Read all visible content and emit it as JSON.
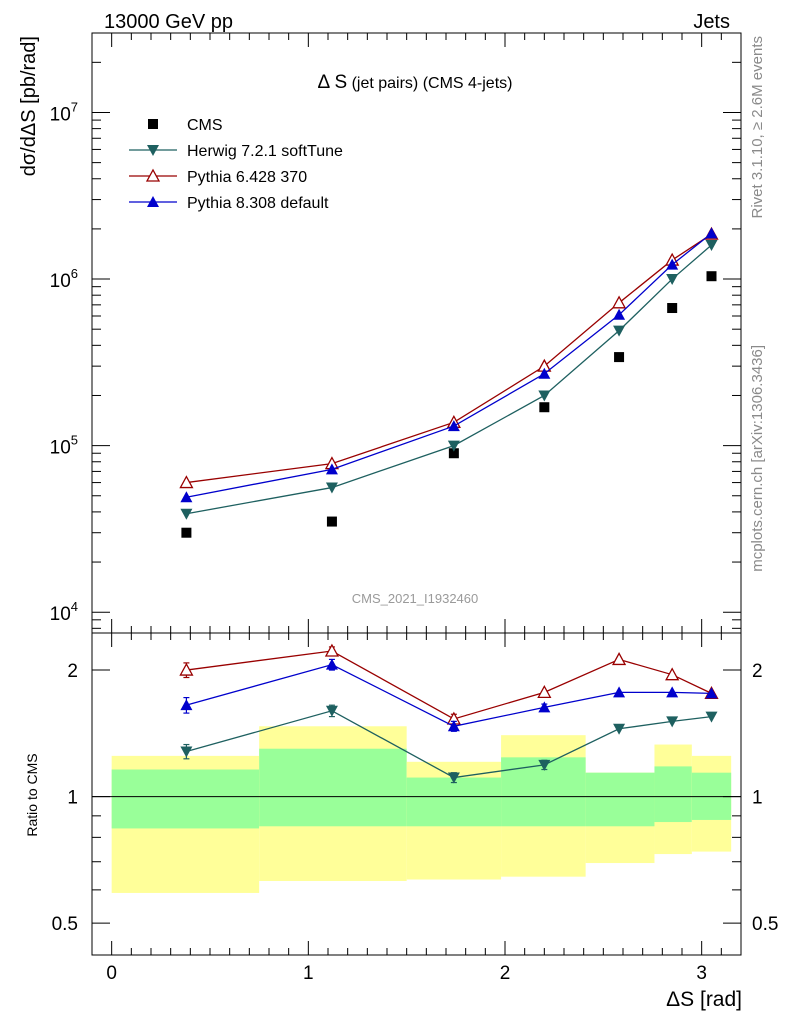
{
  "header": {
    "left": "13000 GeV pp",
    "right": "Jets"
  },
  "side": {
    "rivet": "Rivet 3.1.10, ≥ 2.6M events",
    "mcplots": "mcplots.cern.ch [arXiv:1306.3436]"
  },
  "chart_data": {
    "type": "line",
    "title_main": "Δ S",
    "title_sub": " (jet pairs) (CMS 4-jets)",
    "watermark": "CMS_2021_I1932460",
    "ylabel": "dσ/dΔS [pb/rad]",
    "ratio_ylabel": "Ratio to CMS",
    "xlabel": "ΔS [rad]",
    "xlim": [
      -0.1,
      3.2
    ],
    "ylim": [
      7500,
      30000000
    ],
    "ratio_ylim": [
      0.42,
      2.45
    ],
    "xticks": [
      {
        "value": 0,
        "label": "0"
      },
      {
        "value": 1,
        "label": "1"
      },
      {
        "value": 2,
        "label": "2"
      },
      {
        "value": 3,
        "label": "3"
      }
    ],
    "yticks": [
      {
        "value": 10000,
        "base": "10",
        "exp": "4"
      },
      {
        "value": 100000,
        "base": "10",
        "exp": "5"
      },
      {
        "value": 1000000,
        "base": "10",
        "exp": "6"
      },
      {
        "value": 10000000,
        "base": "10",
        "exp": "7"
      }
    ],
    "ratio_yticks": [
      {
        "value": 0.5,
        "label": "0.5"
      },
      {
        "value": 1,
        "label": "1"
      },
      {
        "value": 2,
        "label": "2"
      }
    ],
    "bin_edges": [
      0.0,
      0.75,
      1.5,
      1.98,
      2.41,
      2.76,
      2.95,
      3.15
    ],
    "band_inner": [
      [
        0.84,
        1.16
      ],
      [
        0.85,
        1.3
      ],
      [
        0.85,
        1.11
      ],
      [
        0.85,
        1.24
      ],
      [
        0.85,
        1.14
      ],
      [
        0.87,
        1.18
      ],
      [
        0.88,
        1.14
      ]
    ],
    "band_outer": [
      [
        0.59,
        1.25
      ],
      [
        0.63,
        1.47
      ],
      [
        0.635,
        1.21
      ],
      [
        0.645,
        1.4
      ],
      [
        0.695,
        1.14
      ],
      [
        0.73,
        1.33
      ],
      [
        0.74,
        1.25
      ]
    ],
    "x": [
      0.38,
      1.12,
      1.74,
      2.2,
      2.58,
      2.85,
      3.05
    ],
    "legend": [
      {
        "label": "CMS",
        "marker": "square",
        "color": "#000000"
      },
      {
        "label": "Herwig 7.2.1 softTune",
        "marker": "triangle-down",
        "color": "#1e6060"
      },
      {
        "label": "Pythia 6.428 370",
        "marker": "triangle-open",
        "color": "#990000"
      },
      {
        "label": "Pythia 8.308 default",
        "marker": "triangle-up",
        "color": "#0000cc"
      }
    ],
    "data_values": [
      30000,
      35000,
      90000,
      170000,
      340000,
      670000,
      1040000
    ],
    "series": [
      {
        "name": "Herwig 7.2.1 softTune",
        "color": "#1e6060",
        "marker": "triangle-down",
        "values": [
          39000,
          56000,
          100000,
          200000,
          490000,
          1000000,
          1600000
        ],
        "ratio": [
          1.28,
          1.6,
          1.11,
          1.19,
          1.45,
          1.51,
          1.55
        ],
        "ratio_err": [
          0.05,
          0.05,
          0.03,
          0.03,
          0.0,
          0.0,
          0.0
        ]
      },
      {
        "name": "Pythia 6.428 370",
        "color": "#990000",
        "marker": "triangle-open",
        "values": [
          60000,
          78000,
          138000,
          300000,
          720000,
          1300000,
          1860000
        ],
        "ratio": [
          2.0,
          2.22,
          1.53,
          1.77,
          2.12,
          1.95,
          1.76
        ],
        "ratio_err": [
          0.08,
          0.05,
          0.04,
          0.0,
          0.0,
          0.0,
          0.0
        ]
      },
      {
        "name": "Pythia 8.308 default",
        "color": "#0000cc",
        "marker": "triangle-up",
        "values": [
          49000,
          72000,
          131000,
          270000,
          610000,
          1220000,
          1880000
        ],
        "ratio": [
          1.65,
          2.06,
          1.47,
          1.63,
          1.77,
          1.77,
          1.76
        ],
        "ratio_err": [
          0.07,
          0.06,
          0.04,
          0.03,
          0.0,
          0.0,
          0.0
        ]
      }
    ]
  }
}
